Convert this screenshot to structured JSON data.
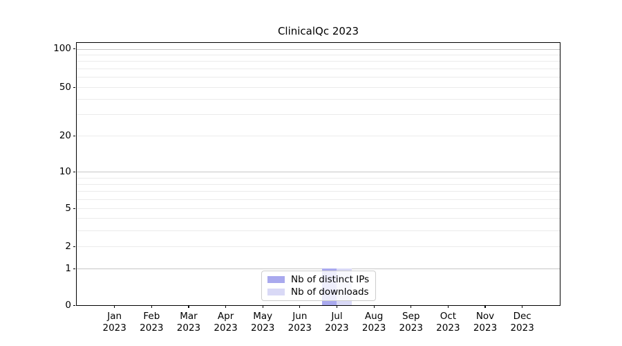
{
  "chart_data": {
    "type": "bar",
    "title": "ClinicalQc 2023",
    "categories": [
      "Jan 2023",
      "Feb 2023",
      "Mar 2023",
      "Apr 2023",
      "May 2023",
      "Jun 2023",
      "Jul 2023",
      "Aug 2023",
      "Sep 2023",
      "Oct 2023",
      "Nov 2023",
      "Dec 2023"
    ],
    "x_tick_months": [
      "Jan",
      "Feb",
      "Mar",
      "Apr",
      "May",
      "Jun",
      "Jul",
      "Aug",
      "Sep",
      "Oct",
      "Nov",
      "Dec"
    ],
    "x_tick_year": "2023",
    "series": [
      {
        "name": "Nb of distinct IPs",
        "color": "#a9a9ee",
        "values": [
          0,
          0,
          0,
          0,
          0,
          0,
          1,
          0,
          0,
          0,
          0,
          0
        ]
      },
      {
        "name": "Nb of downloads",
        "color": "#d9d9f6",
        "values": [
          0,
          0,
          0,
          0,
          0,
          0,
          1,
          0,
          0,
          0,
          0,
          0
        ]
      }
    ],
    "xlabel": "",
    "ylabel": "",
    "yticks": [
      0,
      1,
      2,
      5,
      10,
      20,
      50,
      100
    ],
    "ylim": [
      0,
      114
    ],
    "yscale": "log-like (log10(1+y)), linear segment 0-1",
    "grid": true,
    "legend_position": "lower center",
    "colors": {
      "major_grid": "#c6c6c6",
      "minor_grid": "#ebebeb",
      "axis": "#000000",
      "legend_border": "#cccccc"
    }
  }
}
